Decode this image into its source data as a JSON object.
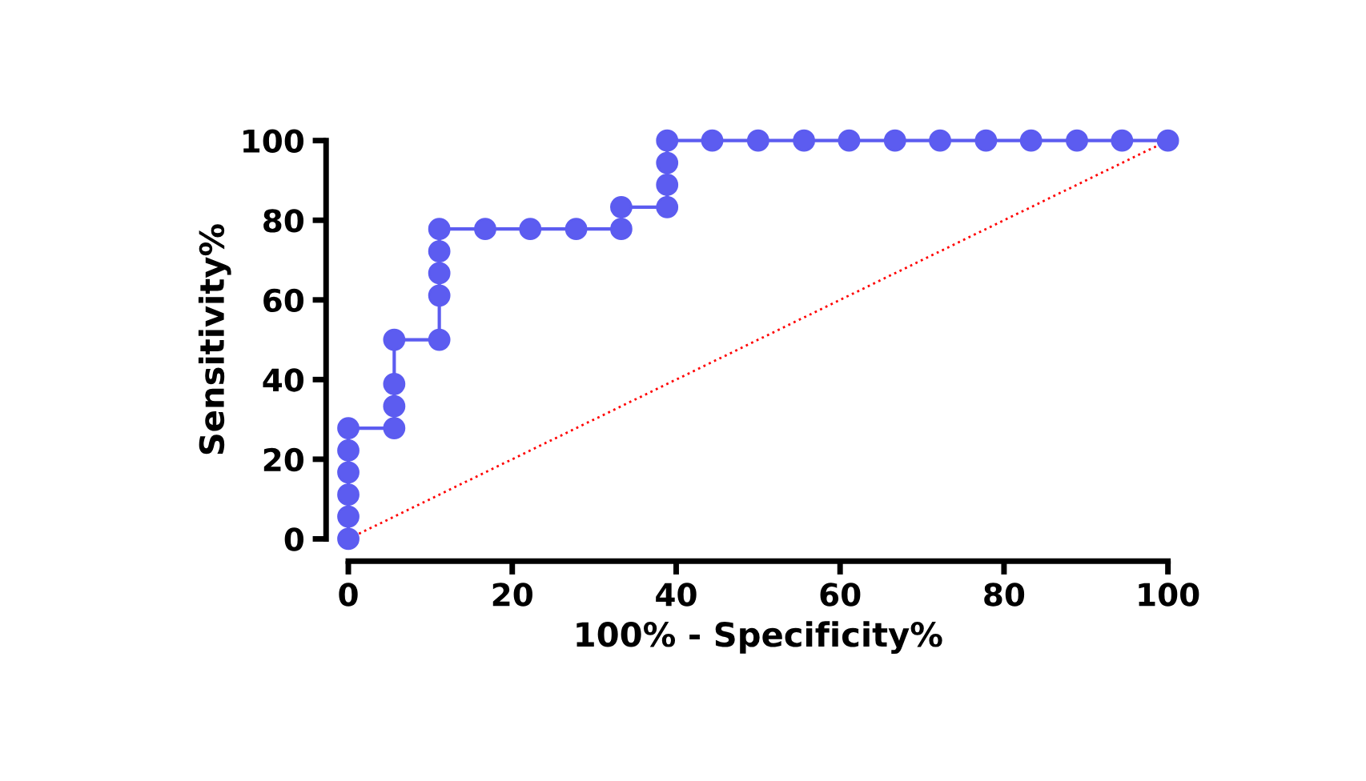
{
  "chart_data": {
    "type": "line",
    "xlabel": "100% - Specificity%",
    "ylabel": "Sensitivity%",
    "xlim": [
      0,
      100
    ],
    "ylim": [
      0,
      100
    ],
    "xticks": [
      0,
      20,
      40,
      60,
      80,
      100
    ],
    "yticks": [
      0,
      20,
      40,
      60,
      80,
      100
    ],
    "grid": false,
    "legend": false,
    "series": [
      {
        "color": "#5c5cf0",
        "marker": "circle",
        "line_style": "solid",
        "x": [
          0,
          0,
          0,
          0,
          0,
          0,
          5.6,
          5.6,
          5.6,
          5.6,
          11.1,
          11.1,
          11.1,
          11.1,
          11.1,
          16.7,
          22.2,
          27.8,
          33.3,
          33.3,
          38.9,
          38.9,
          38.9,
          38.9,
          44.4,
          50,
          55.6,
          61.1,
          66.7,
          72.2,
          77.8,
          83.3,
          88.9,
          94.4,
          100
        ],
        "values": [
          0,
          5.6,
          11.1,
          16.7,
          22.2,
          27.8,
          27.8,
          33.3,
          38.9,
          50,
          50,
          61.1,
          66.7,
          72.2,
          77.8,
          77.8,
          77.8,
          77.8,
          77.8,
          83.3,
          83.3,
          88.9,
          94.4,
          100,
          100,
          100,
          100,
          100,
          100,
          100,
          100,
          100,
          100,
          100,
          100
        ]
      },
      {
        "color": "#ff0000",
        "marker": "none",
        "line_style": "dotted",
        "x": [
          0,
          100
        ],
        "values": [
          0,
          100
        ]
      }
    ]
  }
}
